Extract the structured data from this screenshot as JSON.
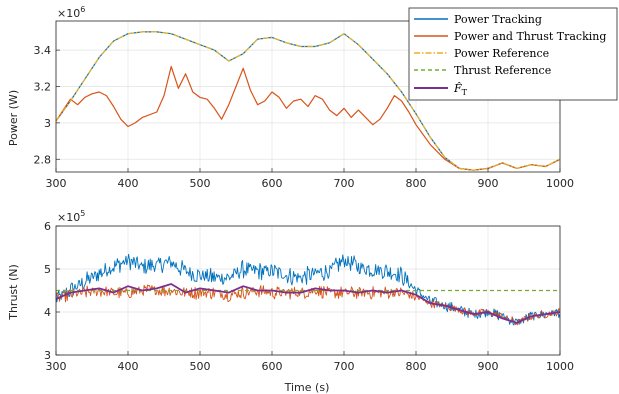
{
  "chart_data": [
    {
      "type": "line",
      "title": "",
      "xlabel": "",
      "ylabel": "Power (W)",
      "xlim": [
        300,
        1000
      ],
      "ylim": [
        2.73,
        3.56
      ],
      "multiplier": "×10",
      "multiplier_exp": "6",
      "xticks": [
        "300",
        "400",
        "500",
        "600",
        "700",
        "800",
        "900",
        "1000"
      ],
      "yticks": [
        "2.8",
        "3",
        "3.2",
        "3.4"
      ],
      "ytick_values": [
        2.8,
        3.0,
        3.2,
        3.4
      ],
      "grid": true,
      "legend_position": "top-right",
      "series": [
        {
          "name": "Power Tracking",
          "color": "#0072BD",
          "x": [
            300,
            320,
            340,
            360,
            380,
            400,
            420,
            440,
            460,
            480,
            500,
            520,
            540,
            560,
            580,
            600,
            620,
            640,
            660,
            680,
            700,
            720,
            740,
            760,
            780,
            800,
            820,
            840,
            860,
            880,
            900,
            920,
            940,
            960,
            980,
            1000
          ],
          "values": [
            3.01,
            3.12,
            3.24,
            3.36,
            3.45,
            3.49,
            3.5,
            3.5,
            3.49,
            3.46,
            3.43,
            3.4,
            3.34,
            3.38,
            3.46,
            3.47,
            3.44,
            3.42,
            3.42,
            3.44,
            3.49,
            3.43,
            3.35,
            3.27,
            3.17,
            3.05,
            2.92,
            2.81,
            2.75,
            2.74,
            2.75,
            2.78,
            2.75,
            2.77,
            2.76,
            2.8
          ]
        },
        {
          "name": "Power and Thrust Tracking",
          "color": "#D95319",
          "x": [
            300,
            310,
            320,
            330,
            340,
            350,
            360,
            370,
            380,
            390,
            400,
            410,
            420,
            440,
            450,
            460,
            470,
            480,
            490,
            500,
            510,
            520,
            530,
            540,
            550,
            560,
            570,
            580,
            590,
            600,
            610,
            620,
            630,
            640,
            650,
            660,
            670,
            680,
            690,
            700,
            710,
            720,
            730,
            740,
            750,
            760,
            770,
            780,
            790,
            800,
            820,
            840,
            860,
            880,
            900,
            920,
            940,
            960,
            980,
            1000
          ],
          "values": [
            3.01,
            3.07,
            3.13,
            3.1,
            3.14,
            3.16,
            3.17,
            3.15,
            3.09,
            3.02,
            2.98,
            3.0,
            3.03,
            3.06,
            3.15,
            3.31,
            3.19,
            3.27,
            3.17,
            3.14,
            3.13,
            3.08,
            3.02,
            3.1,
            3.2,
            3.3,
            3.18,
            3.1,
            3.12,
            3.17,
            3.14,
            3.08,
            3.12,
            3.13,
            3.09,
            3.15,
            3.13,
            3.07,
            3.04,
            3.08,
            3.03,
            3.07,
            3.03,
            2.99,
            3.02,
            3.08,
            3.15,
            3.12,
            3.06,
            2.99,
            2.88,
            2.8,
            2.75,
            2.74,
            2.75,
            2.78,
            2.75,
            2.77,
            2.76,
            2.8
          ]
        },
        {
          "name": "Power Reference",
          "color": "#EDB120",
          "x": [
            300,
            320,
            340,
            360,
            380,
            400,
            420,
            440,
            460,
            480,
            500,
            520,
            540,
            560,
            580,
            600,
            620,
            640,
            660,
            680,
            700,
            720,
            740,
            760,
            780,
            800,
            820,
            840,
            860,
            880,
            900,
            920,
            940,
            960,
            980,
            1000
          ],
          "values": [
            3.01,
            3.12,
            3.24,
            3.36,
            3.45,
            3.49,
            3.5,
            3.5,
            3.49,
            3.46,
            3.43,
            3.4,
            3.34,
            3.38,
            3.46,
            3.47,
            3.44,
            3.42,
            3.42,
            3.44,
            3.49,
            3.43,
            3.35,
            3.27,
            3.17,
            3.05,
            2.92,
            2.81,
            2.75,
            2.74,
            2.75,
            2.78,
            2.75,
            2.77,
            2.76,
            2.8
          ]
        }
      ]
    },
    {
      "type": "line",
      "title": "",
      "xlabel": "Time (s)",
      "ylabel": "Thrust (N)",
      "xlim": [
        300,
        1000
      ],
      "ylim": [
        3,
        6
      ],
      "multiplier": "×10",
      "multiplier_exp": "5",
      "xticks": [
        "300",
        "400",
        "500",
        "600",
        "700",
        "800",
        "900",
        "1000"
      ],
      "yticks": [
        "3",
        "4",
        "5",
        "6"
      ],
      "ytick_values": [
        3,
        4,
        5,
        6
      ],
      "grid": true,
      "series": [
        {
          "name": "Power Tracking",
          "color": "#0072BD",
          "noise": 0.22,
          "x": [
            300,
            320,
            340,
            360,
            380,
            400,
            420,
            440,
            460,
            480,
            500,
            520,
            540,
            560,
            580,
            600,
            620,
            640,
            660,
            680,
            700,
            720,
            740,
            760,
            780,
            800,
            820,
            840,
            860,
            880,
            900,
            920,
            940,
            960,
            980,
            1000
          ],
          "values": [
            4.3,
            4.5,
            4.7,
            4.9,
            5.05,
            5.2,
            5.05,
            5.1,
            5.15,
            4.95,
            4.85,
            4.8,
            4.8,
            5.0,
            4.95,
            4.95,
            4.85,
            4.8,
            4.9,
            4.95,
            5.2,
            5.05,
            5.0,
            4.95,
            4.85,
            4.5,
            4.25,
            4.15,
            4.05,
            3.95,
            4.0,
            3.9,
            3.75,
            3.9,
            3.95,
            4.0
          ]
        },
        {
          "name": "Power and Thrust Tracking",
          "color": "#D95319",
          "noise": 0.16,
          "x": [
            300,
            320,
            340,
            360,
            380,
            400,
            420,
            440,
            460,
            480,
            500,
            520,
            540,
            560,
            580,
            600,
            620,
            640,
            660,
            680,
            700,
            720,
            740,
            760,
            780,
            800,
            820,
            840,
            860,
            880,
            900,
            920,
            940,
            960,
            980,
            1000
          ],
          "values": [
            4.3,
            4.4,
            4.45,
            4.5,
            4.45,
            4.45,
            4.5,
            4.5,
            4.5,
            4.45,
            4.45,
            4.45,
            4.4,
            4.45,
            4.5,
            4.45,
            4.45,
            4.45,
            4.5,
            4.45,
            4.45,
            4.45,
            4.45,
            4.45,
            4.45,
            4.35,
            4.2,
            4.15,
            4.05,
            3.95,
            4.0,
            3.9,
            3.75,
            3.9,
            3.95,
            4.0
          ]
        },
        {
          "name": "Thrust Reference",
          "color": "#77AC30",
          "x": [
            300,
            1000
          ],
          "values": [
            4.5,
            4.5
          ]
        },
        {
          "name": "F̂_T",
          "color": "#7E2F8E",
          "x": [
            300,
            320,
            340,
            360,
            380,
            400,
            420,
            440,
            460,
            480,
            500,
            520,
            540,
            560,
            580,
            600,
            620,
            640,
            660,
            680,
            700,
            720,
            740,
            760,
            780,
            800,
            820,
            840,
            860,
            880,
            900,
            920,
            940,
            960,
            980,
            1000
          ],
          "values": [
            4.3,
            4.45,
            4.5,
            4.55,
            4.45,
            4.6,
            4.5,
            4.55,
            4.65,
            4.45,
            4.55,
            4.5,
            4.45,
            4.6,
            4.5,
            4.5,
            4.45,
            4.45,
            4.55,
            4.5,
            4.5,
            4.45,
            4.5,
            4.45,
            4.5,
            4.4,
            4.2,
            4.15,
            4.05,
            3.95,
            4.0,
            3.85,
            3.75,
            3.9,
            3.95,
            4.0
          ]
        }
      ]
    }
  ],
  "legend": {
    "entries": [
      {
        "label": "Power Tracking",
        "color": "#0072BD",
        "dash": ""
      },
      {
        "label": "Power and Thrust Tracking",
        "color": "#D95319",
        "dash": ""
      },
      {
        "label": "Power Reference",
        "color": "#EDB120",
        "dash": "6 2 1.5 2"
      },
      {
        "label": "Thrust Reference",
        "color": "#77AC30",
        "dash": "4 3"
      }
    ],
    "hat_entry": {
      "symbol": "F̂",
      "subscript": "T",
      "color": "#7E2F8E"
    }
  }
}
